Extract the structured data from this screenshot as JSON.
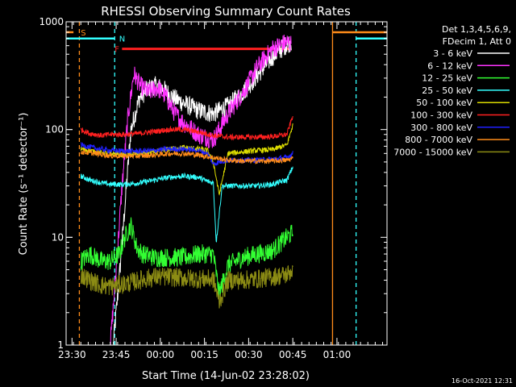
{
  "chart_data": {
    "type": "line",
    "title": "RHESSI Observing Summary Count Rates",
    "xlabel": "Start Time (14-Jun-02 23:28:02)",
    "ylabel": "Count Rate (s⁻¹ detector⁻¹)",
    "ylog": true,
    "ylim": [
      1,
      1000
    ],
    "xlim_minutes_after_2328": [
      0,
      109
    ],
    "x_ticks": [
      {
        "label": "23:30",
        "t": 2
      },
      {
        "label": "23:45",
        "t": 17
      },
      {
        "label": "00:00",
        "t": 32
      },
      {
        "label": "00:15",
        "t": 47
      },
      {
        "label": "00:30",
        "t": 62
      },
      {
        "label": "00:45",
        "t": 77
      },
      {
        "label": "01:00",
        "t": 92
      }
    ],
    "y_ticks": [
      {
        "label": "1",
        "v": 1
      },
      {
        "label": "10",
        "v": 10
      },
      {
        "label": "100",
        "v": 100
      },
      {
        "label": "1000",
        "v": 1000
      }
    ],
    "legend_header": [
      "Det 1,3,4,5,6,9,",
      "FDecim 1, Att 0"
    ],
    "flags": [
      {
        "label": "S",
        "color": "#ff8c1a",
        "y": 800
      },
      {
        "label": "N",
        "color": "#33ffff",
        "y": 700
      },
      {
        "label": "F",
        "color": "#ff2020",
        "y": 560
      }
    ],
    "series": [
      {
        "name": "3 - 6 keV",
        "color": "#ffffff",
        "x": [
          16,
          18,
          20,
          22,
          25,
          28,
          30,
          33,
          36,
          40,
          45,
          50,
          55,
          60,
          65,
          70,
          75,
          76.5
        ],
        "y": [
          1,
          4,
          20,
          100,
          200,
          240,
          255,
          240,
          200,
          175,
          150,
          140,
          165,
          220,
          320,
          470,
          620,
          650
        ]
      },
      {
        "name": "6 - 12 keV",
        "color": "#ff33ff",
        "x": [
          15,
          17,
          19,
          21,
          23,
          25,
          28,
          31,
          34,
          37,
          40,
          45,
          50,
          52,
          55,
          60,
          65,
          70,
          75,
          76.5
        ],
        "y": [
          1,
          5,
          30,
          130,
          330,
          260,
          220,
          245,
          200,
          140,
          115,
          90,
          80,
          100,
          140,
          220,
          380,
          560,
          650,
          620
        ]
      },
      {
        "name": "12 - 25 keV",
        "color": "#33ff33",
        "x": [
          5,
          8,
          12,
          15,
          18,
          20,
          22,
          24,
          26,
          30,
          35,
          40,
          45,
          50,
          52,
          55,
          60,
          65,
          70,
          75,
          77
        ],
        "y": [
          6,
          7,
          6,
          6,
          7,
          10,
          13,
          8,
          7,
          6.5,
          6.5,
          6.5,
          7,
          7,
          3,
          5.5,
          6.5,
          7,
          7.5,
          10,
          11
        ]
      },
      {
        "name": "25 - 50 keV",
        "color": "#33ffff",
        "x": [
          5,
          8,
          12,
          15,
          17,
          20,
          25,
          30,
          35,
          40,
          45,
          48,
          50,
          51,
          53,
          55,
          60,
          65,
          70,
          75,
          77
        ],
        "y": [
          37,
          34,
          32,
          31,
          31,
          31,
          32,
          34,
          36,
          37,
          36,
          33,
          32,
          9,
          30,
          30,
          30,
          30,
          31,
          34,
          45
        ]
      },
      {
        "name": "50 - 100 keV",
        "color": "#dddd00",
        "x": [
          5,
          10,
          15,
          20,
          25,
          30,
          35,
          40,
          45,
          48,
          50,
          52,
          55,
          60,
          65,
          70,
          75,
          77
        ],
        "y": [
          66,
          62,
          60,
          58,
          60,
          62,
          66,
          68,
          66,
          64,
          50,
          25,
          60,
          62,
          64,
          65,
          72,
          110
        ]
      },
      {
        "name": "100 - 300 keV",
        "color": "#ff2020",
        "x": [
          5,
          8,
          12,
          15,
          20,
          25,
          30,
          35,
          40,
          45,
          50,
          55,
          60,
          65,
          70,
          75,
          77
        ],
        "y": [
          100,
          92,
          88,
          90,
          90,
          92,
          96,
          100,
          100,
          95,
          88,
          85,
          85,
          85,
          86,
          90,
          135
        ]
      },
      {
        "name": "300 - 800 keV",
        "color": "#2020ff",
        "x": [
          5,
          10,
          15,
          20,
          25,
          30,
          35,
          40,
          45,
          48,
          50,
          52,
          55,
          60,
          65,
          70,
          75,
          77
        ],
        "y": [
          72,
          67,
          64,
          63,
          63,
          64,
          66,
          66,
          64,
          60,
          48,
          50,
          52,
          52,
          52,
          53,
          55,
          60
        ]
      },
      {
        "name": "800 - 7000 keV",
        "color": "#ff8c1a",
        "x": [
          5,
          10,
          15,
          20,
          25,
          30,
          35,
          40,
          45,
          50,
          55,
          60,
          65,
          70,
          75,
          77
        ],
        "y": [
          62,
          60,
          57,
          57,
          57,
          58,
          60,
          60,
          58,
          55,
          52,
          51,
          51,
          51,
          52,
          54
        ]
      },
      {
        "name": "7000 - 15000 keV",
        "color": "#8c8c14",
        "x": [
          5,
          8,
          12,
          15,
          20,
          25,
          30,
          35,
          40,
          45,
          50,
          52,
          55,
          60,
          65,
          70,
          75,
          77
        ],
        "y": [
          4.5,
          4,
          3.6,
          3.5,
          3.7,
          4,
          4.3,
          4.3,
          4.2,
          4.1,
          4.1,
          2.5,
          4,
          4,
          4.1,
          4.3,
          4.5,
          5
        ]
      }
    ],
    "vertical_markers": [
      {
        "t": 4.5,
        "color": "#ff8c1a",
        "style": "dashed"
      },
      {
        "t": 16.5,
        "color": "#33ffff",
        "style": "dashed"
      },
      {
        "t": 90.5,
        "color": "#ff8c1a",
        "style": "solid"
      },
      {
        "t": 98.5,
        "color": "#33ffff",
        "style": "dashed"
      }
    ]
  },
  "footer": {
    "timestamp": "16-Oct-2021 12:31"
  }
}
